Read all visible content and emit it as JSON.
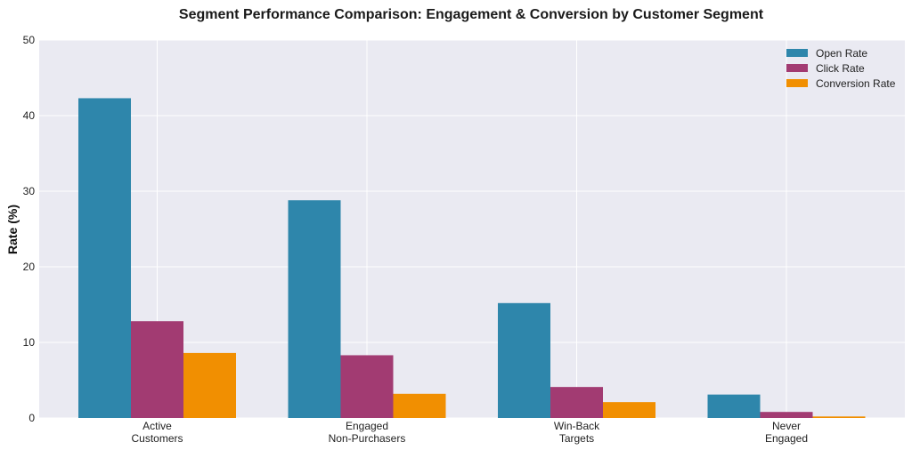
{
  "chart_data": {
    "type": "bar",
    "title": "Segment Performance Comparison: Engagement & Conversion by Customer Segment",
    "xlabel": "",
    "ylabel": "Rate (%)",
    "ylim": [
      0,
      50
    ],
    "yticks": [
      0,
      10,
      20,
      30,
      40,
      50
    ],
    "grid": true,
    "legend_position": "top-right",
    "categories": [
      [
        "Active",
        "Customers"
      ],
      [
        "Engaged",
        "Non-Purchasers"
      ],
      [
        "Win-Back",
        "Targets"
      ],
      [
        "Never",
        "Engaged"
      ]
    ],
    "series": [
      {
        "name": "Open Rate",
        "color": "#2E86AB",
        "values": [
          42.3,
          28.8,
          15.2,
          3.1
        ]
      },
      {
        "name": "Click Rate",
        "color": "#A23B72",
        "values": [
          12.8,
          8.3,
          4.1,
          0.8
        ]
      },
      {
        "name": "Conversion Rate",
        "color": "#F18F01",
        "values": [
          8.6,
          3.2,
          2.1,
          0.2
        ]
      }
    ]
  },
  "colors": {
    "plot_background": "#EAEAF2",
    "grid": "#FFFFFF"
  }
}
